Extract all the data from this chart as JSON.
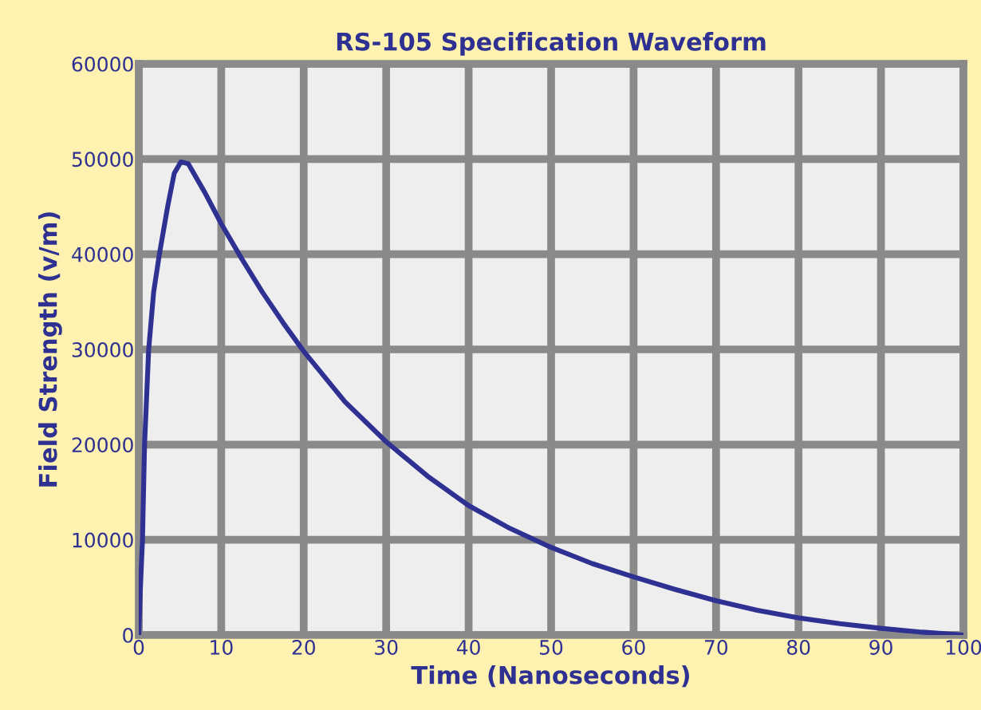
{
  "chart_data": {
    "type": "line",
    "title": "RS-105 Specification Waveform",
    "xlabel": "Time (Nanoseconds)",
    "ylabel": "Field Strength (v/m)",
    "series": [
      {
        "color": "#2e3192",
        "x": [
          0,
          0.2,
          0.45,
          0.7,
          1.2,
          1.8,
          2.5,
          3.5,
          4.3,
          5.1,
          6,
          8,
          10,
          12.5,
          15,
          17.5,
          20,
          25,
          30,
          35,
          40,
          45,
          50,
          55,
          60,
          65,
          70,
          75,
          80,
          85,
          90,
          95,
          100
        ],
        "values": [
          0,
          5000,
          10000,
          20000,
          30000,
          36000,
          40000,
          45000,
          48500,
          49700,
          49500,
          46500,
          43200,
          39500,
          36000,
          32800,
          29800,
          24500,
          20300,
          16700,
          13600,
          11200,
          9200,
          7500,
          6100,
          4800,
          3600,
          2600,
          1800,
          1200,
          700,
          300,
          0
        ]
      }
    ],
    "xlim": [
      0,
      100
    ],
    "ylim": [
      0,
      60000
    ],
    "xticks": [
      0,
      10,
      20,
      30,
      40,
      50,
      60,
      70,
      80,
      90,
      100
    ],
    "yticks": [
      0,
      10000,
      20000,
      30000,
      40000,
      50000,
      60000
    ],
    "grid": true,
    "marker": "none",
    "line_style": "solid"
  }
}
